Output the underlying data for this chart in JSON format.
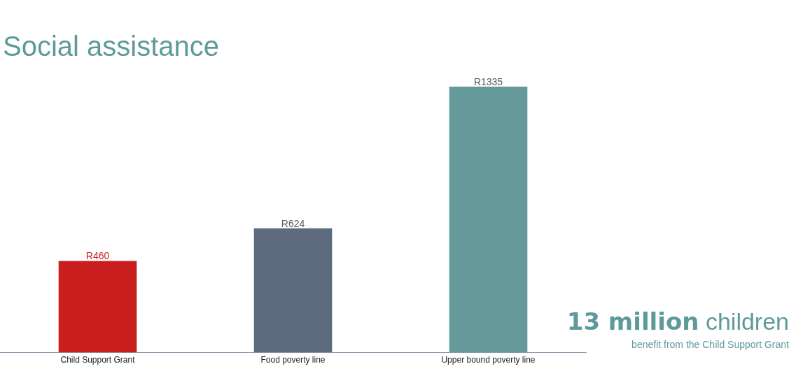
{
  "chart_data": {
    "type": "bar",
    "title": "Social assistance",
    "categories": [
      "Child Support Grant",
      "Food poverty line",
      "Upper bound poverty line"
    ],
    "values": [
      460,
      624,
      1335
    ],
    "colors": [
      "#c81e1e",
      "#5e6a7d",
      "#669999"
    ],
    "value_labels": [
      "R460",
      "R624",
      "R1335"
    ],
    "annotations": [
      "13 million children",
      "benefit from the Child Support Grant"
    ],
    "grid": false,
    "legend": false
  }
}
